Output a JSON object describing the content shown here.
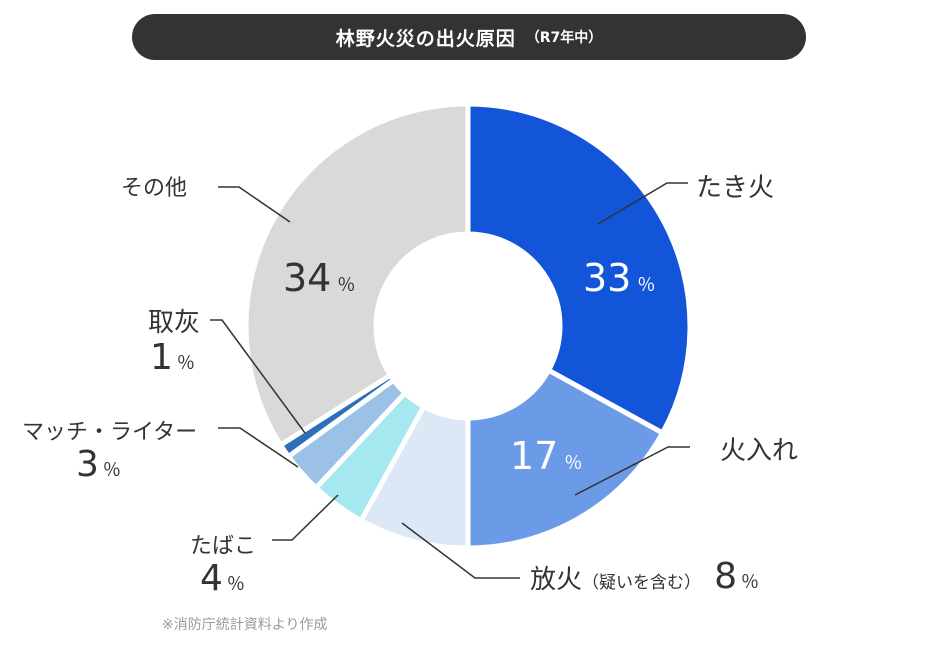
{
  "chart_data": {
    "type": "pie",
    "title": "林野火災の出火原因",
    "subtitle": "（R7年中）",
    "unit": "％",
    "start_angle_deg": 0,
    "order": "clockwise",
    "slices": [
      {
        "label": "たき火",
        "value": 33,
        "color": "#1255d9"
      },
      {
        "label": "火入れ",
        "value": 17,
        "color": "#6b9ae6"
      },
      {
        "label": "放火",
        "label_note": "（疑いを含む）",
        "value": 8,
        "color": "#dce8f6"
      },
      {
        "label": "たばこ",
        "value": 4,
        "color": "#a6e8ef"
      },
      {
        "label": "マッチ・ライター",
        "value": 3,
        "color": "#9cc1e6"
      },
      {
        "label": "取灰",
        "value": 1,
        "color": "#2e6fba"
      },
      {
        "label": "その他",
        "value": 34,
        "color": "#d9d9d9"
      }
    ]
  },
  "source": "※消防庁統計資料より作成"
}
